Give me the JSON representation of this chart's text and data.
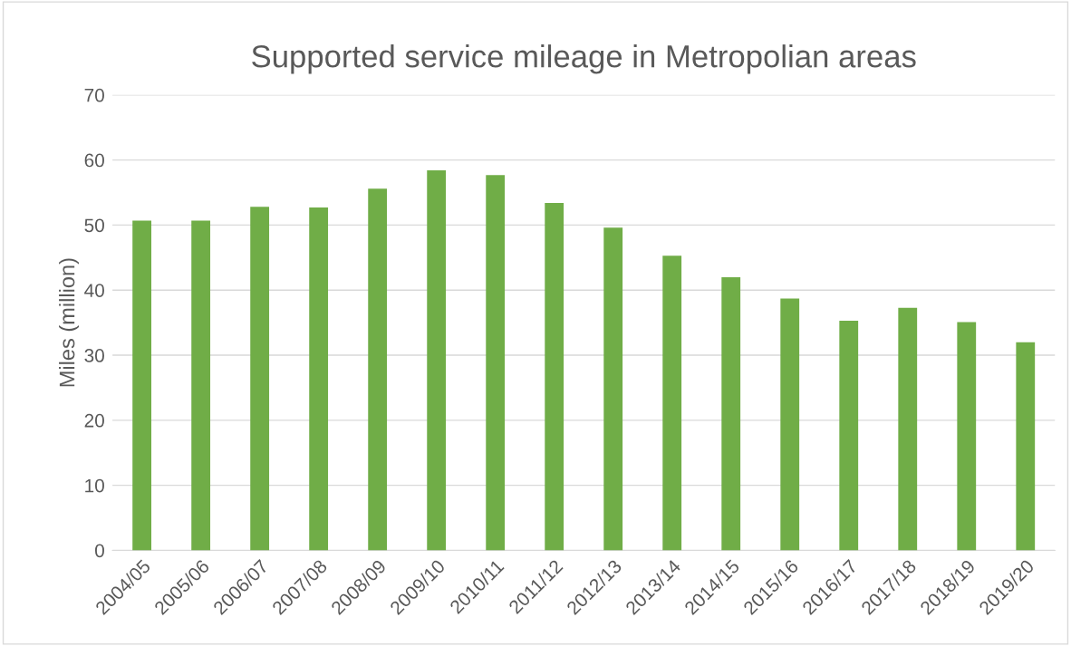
{
  "chart_data": {
    "type": "bar",
    "title": "Supported service mileage in Metropolian areas",
    "ylabel": "Miles (million)",
    "categories": [
      "2004/05",
      "2005/06",
      "2006/07",
      "2007/08",
      "2008/09",
      "2009/10",
      "2010/11",
      "2011/12",
      "2012/13",
      "2013/14",
      "2014/15",
      "2015/16",
      "2016/17",
      "2017/18",
      "2018/19",
      "2019/20"
    ],
    "values": [
      50.7,
      50.7,
      52.8,
      52.7,
      55.6,
      58.4,
      57.7,
      53.4,
      49.6,
      45.3,
      42.0,
      38.7,
      35.3,
      37.3,
      35.1,
      32.0
    ],
    "color": "#70ad47",
    "ylim": [
      0,
      70
    ],
    "yticks": [
      0,
      10,
      20,
      30,
      40,
      50,
      60,
      70
    ],
    "grid": "y",
    "legend": false
  }
}
